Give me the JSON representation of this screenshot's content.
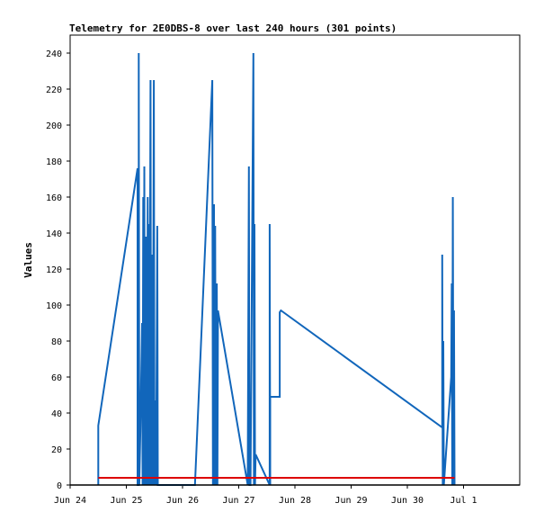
{
  "chart_data": {
    "type": "line",
    "title": "Telemetry for 2E0DBS-8 over last 240 hours (301 points)",
    "xlabel": "",
    "ylabel": "Values",
    "x_tick_labels": [
      "Jun 24",
      "Jun 25",
      "Jun 26",
      "Jun 27",
      "Jun 28",
      "Jun 29",
      "Jun 30",
      "Jul 1"
    ],
    "xlim_days": [
      0,
      8
    ],
    "ylim": [
      0,
      250
    ],
    "y_ticks": [
      0,
      20,
      40,
      60,
      80,
      100,
      120,
      140,
      160,
      180,
      200,
      220,
      240
    ],
    "grid": false,
    "legend": "none",
    "series": [
      {
        "color": "#1166bb",
        "points": [
          [
            0.5,
            0
          ],
          [
            0.5,
            33
          ],
          [
            1.2,
            176
          ],
          [
            1.2,
            0
          ],
          [
            1.22,
            0
          ],
          [
            1.22,
            240
          ],
          [
            1.23,
            0
          ],
          [
            1.25,
            30
          ],
          [
            1.28,
            90
          ],
          [
            1.29,
            0
          ],
          [
            1.3,
            160
          ],
          [
            1.31,
            0
          ],
          [
            1.32,
            177
          ],
          [
            1.33,
            0
          ],
          [
            1.35,
            138
          ],
          [
            1.36,
            0
          ],
          [
            1.38,
            160
          ],
          [
            1.39,
            0
          ],
          [
            1.4,
            145
          ],
          [
            1.41,
            0
          ],
          [
            1.43,
            225
          ],
          [
            1.44,
            0
          ],
          [
            1.46,
            128
          ],
          [
            1.47,
            0
          ],
          [
            1.49,
            225
          ],
          [
            1.5,
            0
          ],
          [
            1.52,
            47
          ],
          [
            1.53,
            0
          ],
          [
            1.55,
            144
          ],
          [
            1.56,
            0
          ],
          [
            2.22,
            0
          ],
          [
            2.53,
            225
          ],
          [
            2.54,
            0
          ],
          [
            2.56,
            156
          ],
          [
            2.57,
            0
          ],
          [
            2.58,
            144
          ],
          [
            2.59,
            0
          ],
          [
            2.61,
            112
          ],
          [
            2.62,
            0
          ],
          [
            2.63,
            97
          ],
          [
            3.16,
            0
          ],
          [
            3.18,
            177
          ],
          [
            3.19,
            0
          ],
          [
            3.21,
            0
          ],
          [
            3.26,
            240
          ],
          [
            3.27,
            0
          ],
          [
            3.28,
            145
          ],
          [
            3.29,
            0
          ],
          [
            3.3,
            17
          ],
          [
            3.55,
            0
          ],
          [
            3.55,
            145
          ],
          [
            3.56,
            0
          ],
          [
            3.56,
            49
          ],
          [
            3.73,
            49
          ],
          [
            3.73,
            96
          ],
          [
            3.75,
            97
          ],
          [
            6.62,
            32
          ],
          [
            6.62,
            128
          ],
          [
            6.63,
            0
          ],
          [
            6.64,
            80
          ],
          [
            6.65,
            0
          ],
          [
            6.78,
            60
          ],
          [
            6.79,
            112
          ],
          [
            6.8,
            0
          ],
          [
            6.81,
            160
          ],
          [
            6.82,
            0
          ],
          [
            6.83,
            97
          ],
          [
            6.84,
            0
          ]
        ]
      },
      {
        "color": "#dd0000",
        "points": [
          [
            0.5,
            4
          ],
          [
            6.84,
            4
          ]
        ]
      }
    ]
  }
}
